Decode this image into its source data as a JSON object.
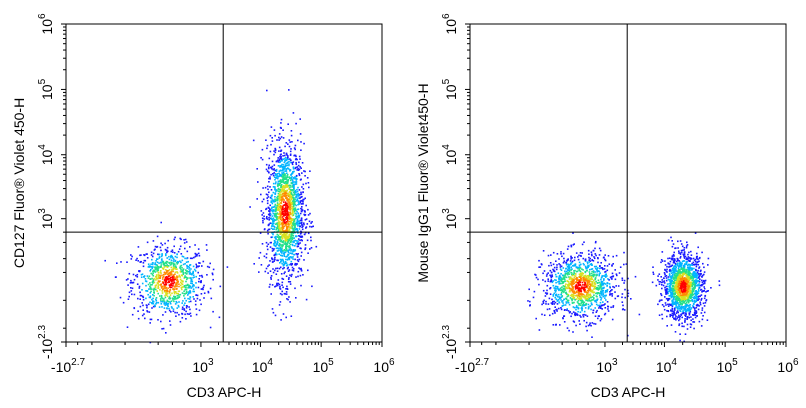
{
  "chart_data": [
    {
      "type": "scatter",
      "xlabel": "CD3 APC-H",
      "ylabel": "CD127 Fluor® Violet 450-H",
      "x_scale": "biexponential",
      "y_scale": "biexponential",
      "x_ticks": [
        {
          "base": "-10",
          "exp": "2.7"
        },
        {
          "base": "10",
          "exp": "3"
        },
        {
          "base": "10",
          "exp": "4"
        },
        {
          "base": "10",
          "exp": "5"
        },
        {
          "base": "10",
          "exp": "6"
        }
      ],
      "y_ticks": [
        {
          "base": "-10",
          "exp": "2.3"
        },
        {
          "base": "10",
          "exp": "3"
        },
        {
          "base": "10",
          "exp": "4"
        },
        {
          "base": "10",
          "exp": "5"
        },
        {
          "base": "10",
          "exp": "6"
        }
      ],
      "gate": {
        "x": 2400,
        "y": 600
      },
      "populations": [
        {
          "name": "",
          "x": 250,
          "y": 60,
          "spread_x": 0.55,
          "spread_y": 0.5,
          "weight": 0.35
        },
        {
          "name": "",
          "x": 25000,
          "y": 1300,
          "spread_x": 0.28,
          "spread_y": 0.95,
          "weight": 0.65
        }
      ],
      "grid": false,
      "color_map": [
        "#1a1aff",
        "#00b4ff",
        "#22e08a",
        "#d8e020",
        "#ff8a00",
        "#ff0000"
      ]
    },
    {
      "type": "scatter",
      "xlabel": "CD3 APC-H",
      "ylabel": "Mouse IgG1 Fluor® Violet450-H",
      "x_scale": "biexponential",
      "y_scale": "biexponential",
      "x_ticks": [
        {
          "base": "-10",
          "exp": "2.7"
        },
        {
          "base": "10",
          "exp": "3"
        },
        {
          "base": "10",
          "exp": "4"
        },
        {
          "base": "10",
          "exp": "5"
        },
        {
          "base": "10",
          "exp": "6"
        }
      ],
      "y_ticks": [
        {
          "base": "-10",
          "exp": "2.3"
        },
        {
          "base": "10",
          "exp": "3"
        },
        {
          "base": "10",
          "exp": "4"
        },
        {
          "base": "10",
          "exp": "5"
        },
        {
          "base": "10",
          "exp": "6"
        }
      ],
      "gate": {
        "x": 2400,
        "y": 600
      },
      "populations": [
        {
          "name": "",
          "x": 350,
          "y": 40,
          "spread_x": 0.55,
          "spread_y": 0.45,
          "weight": 0.45
        },
        {
          "name": "",
          "x": 20000,
          "y": 40,
          "spread_x": 0.3,
          "spread_y": 0.45,
          "weight": 0.55
        }
      ],
      "grid": false,
      "color_map": [
        "#1a1aff",
        "#00b4ff",
        "#22e08a",
        "#d8e020",
        "#ff8a00",
        "#ff0000"
      ]
    }
  ]
}
